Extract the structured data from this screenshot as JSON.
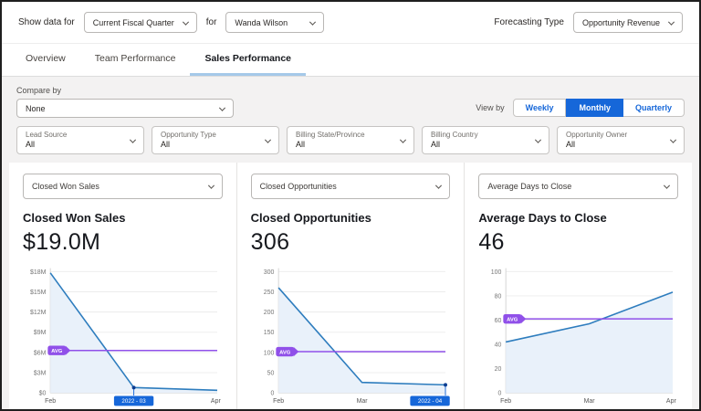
{
  "top_bar": {
    "show_data_for_label": "Show data for",
    "period_value": "Current Fiscal Quarter",
    "for_label": "for",
    "user_value": "Wanda Wilson",
    "forecasting_type_label": "Forecasting Type",
    "forecasting_type_value": "Opportunity Revenue"
  },
  "tabs": [
    {
      "label": "Overview",
      "active": false
    },
    {
      "label": "Team Performance",
      "active": false
    },
    {
      "label": "Sales Performance",
      "active": true
    }
  ],
  "filters": {
    "compare_by_label": "Compare by",
    "compare_by_value": "None",
    "view_by_label": "View by",
    "view_by_options": [
      {
        "label": "Weekly",
        "active": false
      },
      {
        "label": "Monthly",
        "active": true
      },
      {
        "label": "Quarterly",
        "active": false
      }
    ],
    "dropdowns": [
      {
        "label": "Lead Source",
        "value": "All"
      },
      {
        "label": "Opportunity Type",
        "value": "All"
      },
      {
        "label": "Billing State/Province",
        "value": "All"
      },
      {
        "label": "Billing Country",
        "value": "All"
      },
      {
        "label": "Opportunity Owner",
        "value": "All"
      }
    ]
  },
  "cards": [
    {
      "select_value": "Closed Won Sales",
      "title": "Closed Won Sales",
      "big_value": "$19.0M"
    },
    {
      "select_value": "Closed Opportunities",
      "title": "Closed Opportunities",
      "big_value": "306"
    },
    {
      "select_value": "Average Days to Close",
      "title": "Average Days to Close",
      "big_value": "46"
    }
  ],
  "colors": {
    "accent_blue": "#1667d9",
    "tab_underline": "#a5c9e9",
    "avg_purple": "#9050e9",
    "chart_line": "#2e7dbe",
    "chart_fill": "#e9f1fa",
    "content_bg": "#f3f2f2"
  },
  "chart_data": [
    {
      "type": "area",
      "title": "Closed Won Sales",
      "x": [
        "Feb",
        "Mar",
        "Apr"
      ],
      "values": [
        17.8,
        0.8,
        0.4
      ],
      "unit": "millions USD",
      "avg": 6.3,
      "avg_label": "AVG",
      "ylim": [
        0,
        18
      ],
      "grid": true,
      "y_ticks": [
        {
          "v": 18,
          "label": "$18M"
        },
        {
          "v": 15,
          "label": "$15M"
        },
        {
          "v": 12,
          "label": "$12M"
        },
        {
          "v": 9,
          "label": "$9M"
        },
        {
          "v": 6,
          "label": "$6M"
        },
        {
          "v": 3,
          "label": "$3M"
        },
        {
          "v": 0,
          "label": "$0"
        }
      ],
      "x_ticks": [
        {
          "label": "Feb"
        },
        {
          "badge": "2022 - 03"
        },
        {
          "label": "Apr"
        }
      ],
      "selected_index": 1,
      "line_color": "#2e7dbe",
      "fill_color": "#e9f1fa",
      "avg_color": "#9050e9",
      "badge_color": "#1667d9"
    },
    {
      "type": "area",
      "title": "Closed Opportunities",
      "x": [
        "Feb",
        "Mar",
        "Apr"
      ],
      "values": [
        260,
        26,
        20
      ],
      "unit": "count",
      "avg": 102,
      "avg_label": "AVG",
      "ylim": [
        0,
        300
      ],
      "grid": true,
      "y_ticks": [
        {
          "v": 300,
          "label": "300"
        },
        {
          "v": 250,
          "label": "250"
        },
        {
          "v": 200,
          "label": "200"
        },
        {
          "v": 150,
          "label": "150"
        },
        {
          "v": 100,
          "label": "100"
        },
        {
          "v": 50,
          "label": "50"
        },
        {
          "v": 0,
          "label": "0"
        }
      ],
      "x_ticks": [
        {
          "label": "Feb"
        },
        {
          "label": "Mar"
        },
        {
          "badge": "2022 - 04"
        }
      ],
      "selected_index": 2,
      "line_color": "#2e7dbe",
      "fill_color": "#e9f1fa",
      "avg_color": "#9050e9",
      "badge_color": "#1667d9"
    },
    {
      "type": "area",
      "title": "Average Days to Close",
      "x": [
        "Feb",
        "Mar",
        "Apr"
      ],
      "values": [
        42,
        57,
        83
      ],
      "unit": "days",
      "avg": 61,
      "avg_label": "AVG",
      "ylim": [
        0,
        100
      ],
      "grid": true,
      "y_ticks": [
        {
          "v": 100,
          "label": "100"
        },
        {
          "v": 80,
          "label": "80"
        },
        {
          "v": 60,
          "label": "60"
        },
        {
          "v": 40,
          "label": "40"
        },
        {
          "v": 20,
          "label": "20"
        },
        {
          "v": 0,
          "label": "0"
        }
      ],
      "x_ticks": [
        {
          "label": "Feb"
        },
        {
          "label": "Mar"
        },
        {
          "label": "Apr"
        }
      ],
      "selected_index": null,
      "line_color": "#2e7dbe",
      "fill_color": "#e9f1fa",
      "avg_color": "#9050e9",
      "badge_color": "#1667d9"
    }
  ]
}
